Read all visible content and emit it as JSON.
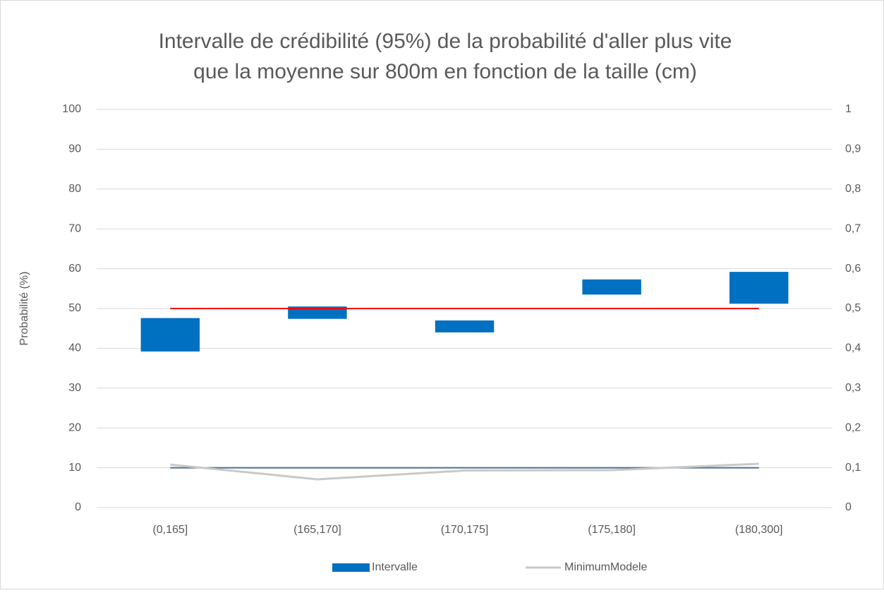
{
  "chart_data": {
    "type": "floating-bar-line",
    "title": [
      "Intervalle de crédibilité (95%) de la probabilité d'aller plus vite",
      "que la moyenne sur 800m en fonction de la taille (cm)"
    ],
    "ylabel": "Probabilité (%)",
    "categories": [
      "(0,165]",
      "(165,170]",
      "(170,175]",
      "(175,180]",
      "(180,300]"
    ],
    "ylim": [
      0,
      100
    ],
    "yticks": [
      0,
      10,
      20,
      30,
      40,
      50,
      60,
      70,
      80,
      90,
      100
    ],
    "y2lim": [
      0,
      1
    ],
    "y2ticks": [
      0,
      {
        "value": 0.1,
        "label": "0,1"
      },
      {
        "value": 0.2,
        "label": "0,2"
      },
      {
        "value": 0.3,
        "label": "0,3"
      },
      {
        "value": 0.4,
        "label": "0,4"
      },
      {
        "value": 0.5,
        "label": "0,5"
      },
      {
        "value": 0.6,
        "label": "0,6"
      },
      {
        "value": 0.7,
        "label": "0,7"
      },
      {
        "value": 0.8,
        "label": "0,8"
      },
      {
        "value": 0.9,
        "label": "0,9"
      },
      1
    ],
    "grid": true,
    "legend": "bottom",
    "bars": {
      "name": "Intervalle",
      "color": "#0070c0",
      "low": [
        39.2,
        47.4,
        44.0,
        53.5,
        51.2
      ],
      "high": [
        47.6,
        50.5,
        47.0,
        57.3,
        59.2
      ]
    },
    "series": [
      {
        "name": "MinimumModele",
        "color": "#c9c9c9",
        "axis": "y2",
        "values": [
          0.108,
          0.071,
          0.093,
          0.094,
          0.11
        ]
      },
      {
        "color": "#ff0000",
        "values": [
          50,
          50,
          50,
          50,
          50
        ]
      },
      {
        "color": "#4f6d8f",
        "axis": "y2",
        "values": [
          0.1,
          0.1,
          0.1,
          0.1,
          0.1
        ]
      }
    ]
  }
}
